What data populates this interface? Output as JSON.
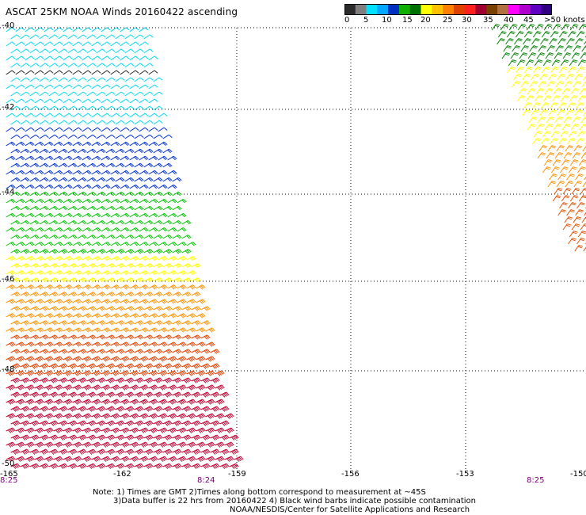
{
  "title": "ASCAT 25KM NOAA Winds 20160422 ascending",
  "colorbar": {
    "labels": [
      "0",
      "5",
      "10",
      "15",
      "20",
      "25",
      "30",
      "35",
      "40",
      "45",
      ">50 knots"
    ],
    "colors": [
      "#2b2b2b",
      "#7f7f7f",
      "#00e0ff",
      "#00a8ff",
      "#0030c0",
      "#10b000",
      "#007000",
      "#ffff00",
      "#ffc000",
      "#ff8000",
      "#e04000",
      "#ff2020",
      "#a00030",
      "#7a4000",
      "#b07040",
      "#ff00ff",
      "#b000d0",
      "#6000c0",
      "#300080"
    ]
  },
  "map": {
    "lat_labels": [
      "-40",
      "-42",
      "-44",
      "-46",
      "-48",
      "-50"
    ],
    "lon_labels": [
      "-165",
      "-162",
      "-159",
      "-156",
      "-153",
      "-150"
    ],
    "grid_lat": [
      -40,
      -42,
      -44,
      -46,
      -48
    ],
    "grid_lon": [
      -159,
      -156,
      -153
    ],
    "time_labels": [
      "8:25",
      "8:24",
      "8:25"
    ],
    "swaths": [
      {
        "name": "west-swath",
        "color_bands": [
          "#202020",
          "#00d8f0",
          "#0030d0",
          "#00c000",
          "#ffff00",
          "#ff9000",
          "#e04000",
          "#c00030"
        ]
      },
      {
        "name": "east-swath",
        "color_bands": [
          "#008000",
          "#ffff00",
          "#ff9000",
          "#e05000"
        ]
      }
    ]
  },
  "notes": [
    "Note: 1) Times are GMT 2)Times along bottom correspond to measurement at ~45S",
    "3)Data buffer is 22 hrs from 20160422 4) Black wind barbs indicate possible contamination",
    "NOAA/NESDIS/Center for Satellite Applications and Research"
  ]
}
